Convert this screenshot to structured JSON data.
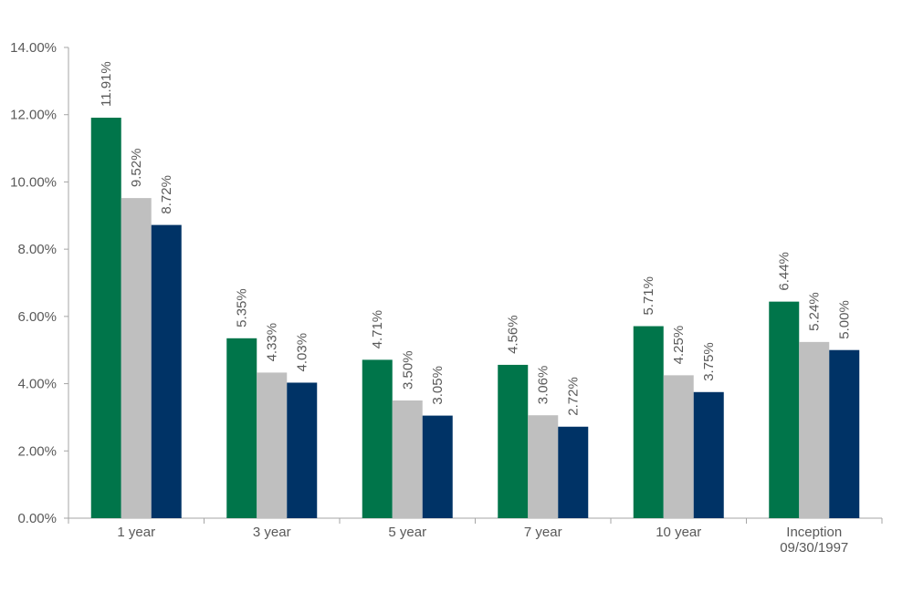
{
  "chart_data": {
    "type": "bar",
    "categories": [
      "1 year",
      "3 year",
      "5 year",
      "7 year",
      "10 year",
      "Inception 09/30/1997"
    ],
    "category_lines": [
      [
        "1 year"
      ],
      [
        "3 year"
      ],
      [
        "5 year"
      ],
      [
        "7 year"
      ],
      [
        "10 year"
      ],
      [
        "Inception",
        "09/30/1997"
      ]
    ],
    "series": [
      {
        "values": [
          11.91,
          5.35,
          4.71,
          4.56,
          5.71,
          6.44
        ],
        "labels": [
          "11.91%",
          "5.35%",
          "4.71%",
          "4.56%",
          "5.71%",
          "6.44%"
        ],
        "color": "#00754A"
      },
      {
        "values": [
          9.52,
          4.33,
          3.5,
          3.06,
          4.25,
          5.24
        ],
        "labels": [
          "9.52%",
          "4.33%",
          "3.50%",
          "3.06%",
          "4.25%",
          "5.24%"
        ],
        "color": "#BFBFBF"
      },
      {
        "values": [
          8.72,
          4.03,
          3.05,
          2.72,
          3.75,
          5.0
        ],
        "labels": [
          "8.72%",
          "4.03%",
          "3.05%",
          "2.72%",
          "3.75%",
          "5.00%"
        ],
        "color": "#003366"
      }
    ],
    "yticks": [
      "0.00%",
      "2.00%",
      "4.00%",
      "6.00%",
      "8.00%",
      "10.00%",
      "12.00%",
      "14.00%"
    ],
    "ylim": [
      0,
      14
    ],
    "grid": false,
    "legend": "none"
  }
}
